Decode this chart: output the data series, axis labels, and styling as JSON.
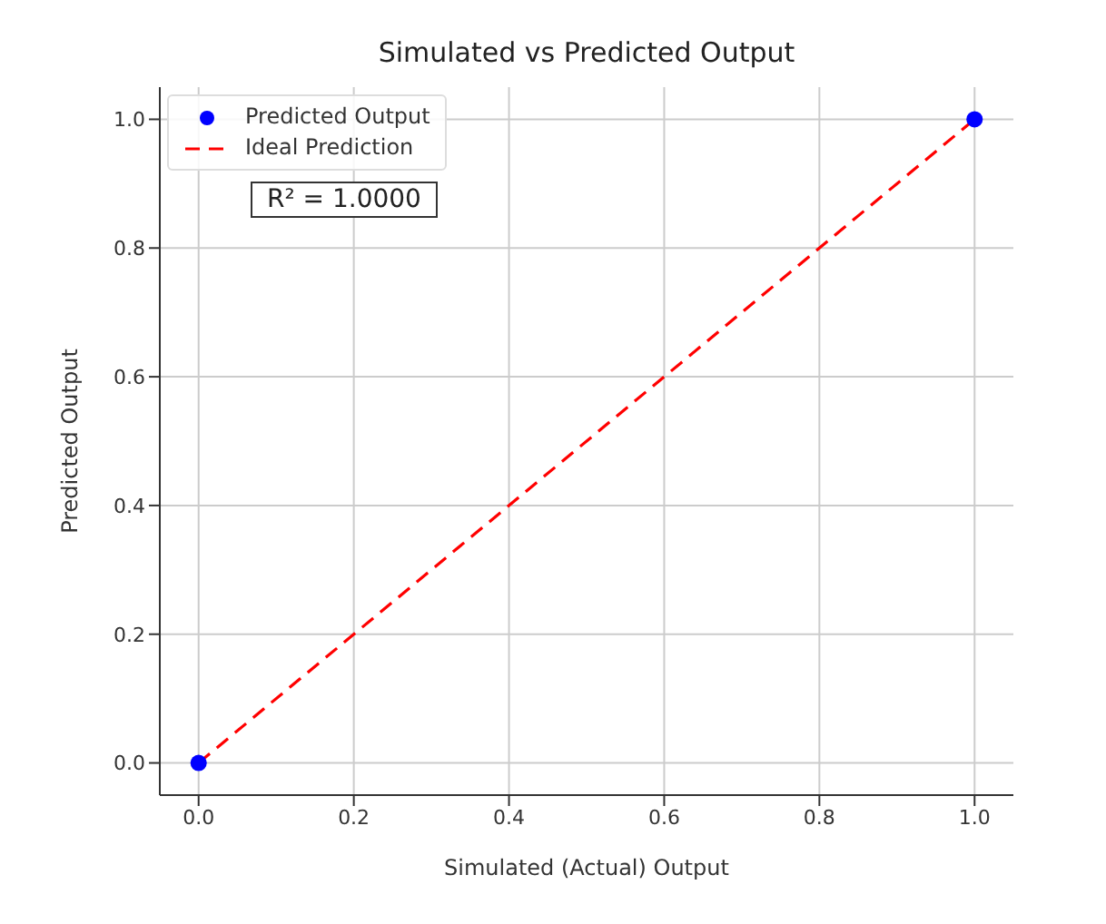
{
  "chart_data": {
    "type": "scatter",
    "title": "Simulated vs Predicted Output",
    "xlabel": "Simulated (Actual) Output",
    "ylabel": "Predicted Output",
    "x": [
      0,
      1
    ],
    "series": [
      {
        "name": "Predicted Output",
        "color": "#0000ff",
        "values": [
          0,
          1
        ],
        "marker": "circle"
      },
      {
        "name": "Ideal Prediction",
        "type": "line",
        "color": "#ff0000",
        "values": [
          0,
          1
        ],
        "line_style": "dashed",
        "marker": "none"
      }
    ],
    "annotations": [
      "R² = 1.0000"
    ],
    "xlim": [
      -0.05,
      1.05
    ],
    "ylim": [
      -0.05,
      1.05
    ],
    "xticks": [
      {
        "value": 0,
        "label": "0.0"
      },
      {
        "value": 0.2,
        "label": "0.2"
      },
      {
        "value": 0.4,
        "label": "0.4"
      },
      {
        "value": 0.6,
        "label": "0.6"
      },
      {
        "value": 0.8,
        "label": "0.8"
      },
      {
        "value": 1,
        "label": "1.0"
      }
    ],
    "yticks": [
      {
        "value": 0,
        "label": "0.0"
      },
      {
        "value": 0.2,
        "label": "0.2"
      },
      {
        "value": 0.4,
        "label": "0.4"
      },
      {
        "value": 0.6,
        "label": "0.6"
      },
      {
        "value": 0.8,
        "label": "0.8"
      },
      {
        "value": 1,
        "label": "1.0"
      }
    ],
    "grid": true,
    "legend": "top left"
  }
}
